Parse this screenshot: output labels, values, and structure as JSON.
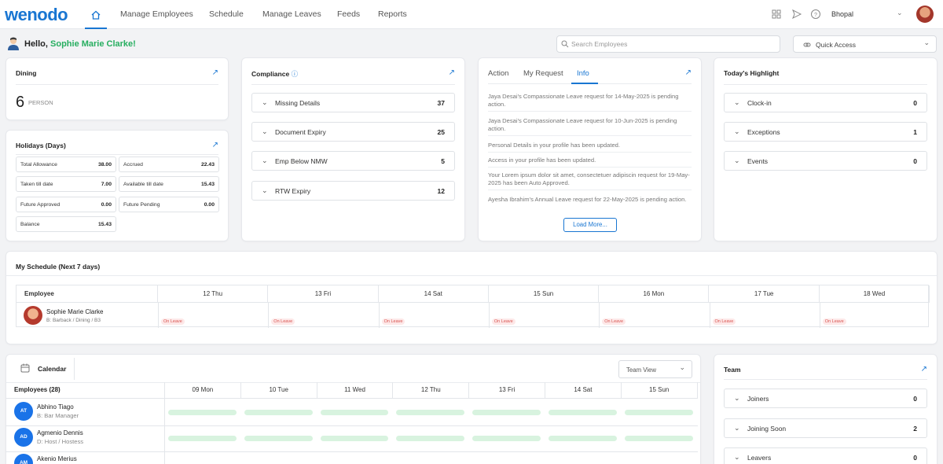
{
  "app": {
    "logo": "wenodo"
  },
  "nav": {
    "items": [
      "Manage Employees",
      "Schedule",
      "Manage Leaves",
      "Feeds",
      "Reports"
    ],
    "location": "Bhopal"
  },
  "greeting": {
    "prefix": "Hello, ",
    "name": "Sophie Marie Clarke!"
  },
  "search": {
    "placeholder": "Search Employees"
  },
  "quick_access": {
    "label": "Quick Access"
  },
  "dining": {
    "title": "Dining",
    "count": "6",
    "unit": "PERSON"
  },
  "holidays": {
    "title": "Holidays (Days)",
    "items": [
      {
        "label": "Total Allowance",
        "value": "38.00"
      },
      {
        "label": "Accrued",
        "value": "22.43"
      },
      {
        "label": "Taken till date",
        "value": "7.00"
      },
      {
        "label": "Available till date",
        "value": "15.43"
      },
      {
        "label": "Future Approved",
        "value": "0.00"
      },
      {
        "label": "Future Pending",
        "value": "0.00"
      },
      {
        "label": "Balance",
        "value": "15.43"
      }
    ]
  },
  "compliance": {
    "title": "Compliance",
    "items": [
      {
        "label": "Missing Details",
        "value": "37"
      },
      {
        "label": "Document Expiry",
        "value": "25"
      },
      {
        "label": "Emp Below NMW",
        "value": "5"
      },
      {
        "label": "RTW Expiry",
        "value": "12"
      }
    ]
  },
  "info_panel": {
    "tabs": [
      "Action",
      "My Request",
      "Info"
    ],
    "active_tab": "Info",
    "items": [
      "Jaya Desai's Compassionate Leave request for 14-May-2025 is pending action.",
      "Jaya Desai's Compassionate Leave request for 10-Jun-2025 is pending action.",
      "Personal Details in your profile has been updated.",
      "Access in your profile has been updated.",
      "Your Lorem ipsum dolor sit amet, consectetuer adipiscin request for 19-May-2025 has been Auto Approved.",
      "Ayesha Ibrahim's Annual Leave request for 22-May-2025 is pending action."
    ],
    "load_more": "Load More..."
  },
  "highlight": {
    "title": "Today's Highlight",
    "items": [
      {
        "label": "Clock-in",
        "value": "0"
      },
      {
        "label": "Exceptions",
        "value": "1"
      },
      {
        "label": "Events",
        "value": "0"
      }
    ]
  },
  "schedule": {
    "title": "My Schedule (Next 7 days)",
    "employee_header": "Employee",
    "days": [
      "12 Thu",
      "13 Fri",
      "14 Sat",
      "15 Sun",
      "16 Mon",
      "17 Tue",
      "18 Wed"
    ],
    "employee": {
      "name": "Sophie Marie Clarke",
      "role": "B: Barback / Dining / B3"
    },
    "status": "On Leave"
  },
  "calendar": {
    "title": "Calendar",
    "view": "Team View",
    "employees_header": "Employees (28)",
    "days": [
      "09 Mon",
      "10 Tue",
      "11 Wed",
      "12 Thu",
      "13 Fri",
      "14 Sat",
      "15 Sun"
    ],
    "employees": [
      {
        "initials": "AT",
        "name": "Abhino Tiago",
        "role": "B: Bar Manager"
      },
      {
        "initials": "AD",
        "name": "Agmenio Dennis",
        "role": "D: Host / Hostess"
      },
      {
        "initials": "AM",
        "name": "Akenio Merius",
        "role": ""
      }
    ]
  },
  "team": {
    "title": "Team",
    "items": [
      {
        "label": "Joiners",
        "value": "0"
      },
      {
        "label": "Joining Soon",
        "value": "2"
      },
      {
        "label": "Leavers",
        "value": "0"
      }
    ]
  }
}
